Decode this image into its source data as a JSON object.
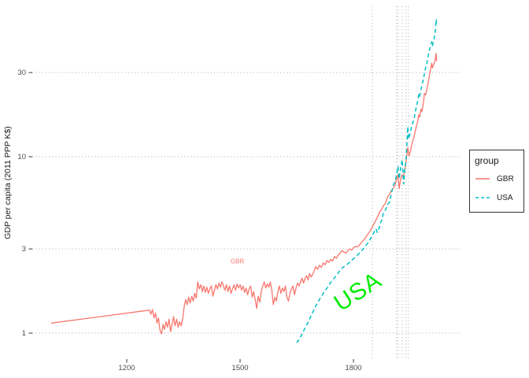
{
  "figure": {
    "background": "#FFFFFF"
  },
  "chart_data": {
    "type": "line",
    "title": "",
    "xlabel": "",
    "ylabel": "GDP per capita (2011 PPP K$)",
    "x_scale": "linear_years",
    "y_scale": "log10",
    "x_ticks": [
      1200,
      1500,
      1800
    ],
    "y_ticks": [
      1,
      3,
      10,
      30
    ],
    "x_range": [
      949,
      2071
    ],
    "y_range": [
      0.71,
      71.5
    ],
    "grid": {
      "horizontal_dotted_at_y_ticks": true,
      "vertical_gridlines_at_x_ticks": false
    },
    "vlines": [
      1850,
      1914,
      1918,
      1929,
      1939,
      1945
    ],
    "colors": {
      "gbr_line": "#F8766D",
      "usa_line": "#00BFC4",
      "usa_annotation": "#00EC00",
      "grid_dots": "#ABABAB",
      "axis_text": "#4D4D4D",
      "tick_mark": "#333333"
    },
    "legend": {
      "title": "group",
      "position": "right",
      "entries": [
        {
          "label": "GBR",
          "color": "#F8766D",
          "linetype": "solid"
        },
        {
          "label": "USA",
          "color": "#00BFC4",
          "linetype": "dashed"
        }
      ]
    },
    "annotations": [
      {
        "text": "GBR",
        "x": 1493,
        "y": 2.55,
        "color": "#F8766D",
        "rotate_deg": 0
      },
      {
        "text": "USA",
        "x": 1812,
        "y": 1.7,
        "color": "#00EC00",
        "rotate_deg": -33
      }
    ],
    "series": [
      {
        "name": "GBR",
        "color": "#F8766D",
        "linetype": "solid",
        "width": 1.3,
        "points": [
          [
            1000,
            1.14
          ],
          [
            1260,
            1.35
          ],
          [
            1264,
            1.28
          ],
          [
            1268,
            1.36
          ],
          [
            1272,
            1.22
          ],
          [
            1276,
            1.3
          ],
          [
            1280,
            1.14
          ],
          [
            1284,
            1.22
          ],
          [
            1288,
            1.04
          ],
          [
            1292,
            0.99
          ],
          [
            1296,
            1.12
          ],
          [
            1300,
            1.05
          ],
          [
            1304,
            1.16
          ],
          [
            1308,
            1.08
          ],
          [
            1312,
            1.2
          ],
          [
            1316,
            1.02
          ],
          [
            1320,
            1.12
          ],
          [
            1324,
            1.24
          ],
          [
            1328,
            1.1
          ],
          [
            1332,
            1.2
          ],
          [
            1336,
            1.08
          ],
          [
            1340,
            1.16
          ],
          [
            1344,
            1.1
          ],
          [
            1348,
            1.2
          ],
          [
            1352,
            1.42
          ],
          [
            1356,
            1.55
          ],
          [
            1360,
            1.45
          ],
          [
            1364,
            1.6
          ],
          [
            1368,
            1.48
          ],
          [
            1372,
            1.62
          ],
          [
            1376,
            1.52
          ],
          [
            1380,
            1.68
          ],
          [
            1384,
            1.58
          ],
          [
            1388,
            1.95
          ],
          [
            1392,
            1.78
          ],
          [
            1396,
            1.88
          ],
          [
            1400,
            1.72
          ],
          [
            1404,
            1.85
          ],
          [
            1408,
            1.7
          ],
          [
            1412,
            1.82
          ],
          [
            1416,
            1.68
          ],
          [
            1420,
            1.78
          ],
          [
            1424,
            1.85
          ],
          [
            1428,
            1.62
          ],
          [
            1432,
            1.75
          ],
          [
            1436,
            1.88
          ],
          [
            1440,
            1.78
          ],
          [
            1444,
            1.92
          ],
          [
            1448,
            1.82
          ],
          [
            1452,
            1.95
          ],
          [
            1456,
            1.85
          ],
          [
            1460,
            1.75
          ],
          [
            1464,
            1.88
          ],
          [
            1468,
            1.72
          ],
          [
            1472,
            1.85
          ],
          [
            1476,
            1.68
          ],
          [
            1480,
            1.78
          ],
          [
            1484,
            1.88
          ],
          [
            1488,
            1.75
          ],
          [
            1492,
            1.9
          ],
          [
            1496,
            1.8
          ],
          [
            1500,
            1.88
          ],
          [
            1504,
            1.75
          ],
          [
            1508,
            1.85
          ],
          [
            1512,
            1.7
          ],
          [
            1516,
            1.8
          ],
          [
            1520,
            1.65
          ],
          [
            1524,
            1.78
          ],
          [
            1528,
            1.85
          ],
          [
            1532,
            1.6
          ],
          [
            1536,
            1.72
          ],
          [
            1540,
            1.55
          ],
          [
            1544,
            1.38
          ],
          [
            1548,
            1.62
          ],
          [
            1552,
            1.5
          ],
          [
            1556,
            1.72
          ],
          [
            1560,
            1.85
          ],
          [
            1564,
            1.95
          ],
          [
            1568,
            1.8
          ],
          [
            1572,
            1.9
          ],
          [
            1576,
            1.82
          ],
          [
            1580,
            1.95
          ],
          [
            1584,
            1.75
          ],
          [
            1588,
            1.45
          ],
          [
            1592,
            1.6
          ],
          [
            1596,
            1.52
          ],
          [
            1600,
            1.72
          ],
          [
            1604,
            1.85
          ],
          [
            1608,
            1.68
          ],
          [
            1612,
            1.8
          ],
          [
            1616,
            1.72
          ],
          [
            1620,
            1.85
          ],
          [
            1624,
            1.6
          ],
          [
            1628,
            1.52
          ],
          [
            1632,
            1.68
          ],
          [
            1636,
            1.78
          ],
          [
            1640,
            1.85
          ],
          [
            1644,
            1.65
          ],
          [
            1648,
            1.8
          ],
          [
            1652,
            1.92
          ],
          [
            1656,
            1.85
          ],
          [
            1660,
            1.95
          ],
          [
            1664,
            2.05
          ],
          [
            1668,
            1.92
          ],
          [
            1672,
            2.05
          ],
          [
            1676,
            2.12
          ],
          [
            1680,
            2.0
          ],
          [
            1684,
            2.18
          ],
          [
            1688,
            2.08
          ],
          [
            1692,
            2.15
          ],
          [
            1696,
            2.25
          ],
          [
            1700,
            2.38
          ],
          [
            1705,
            2.3
          ],
          [
            1710,
            2.42
          ],
          [
            1715,
            2.36
          ],
          [
            1720,
            2.5
          ],
          [
            1725,
            2.44
          ],
          [
            1730,
            2.58
          ],
          [
            1735,
            2.52
          ],
          [
            1740,
            2.62
          ],
          [
            1745,
            2.56
          ],
          [
            1750,
            2.72
          ],
          [
            1755,
            2.66
          ],
          [
            1760,
            2.78
          ],
          [
            1765,
            2.84
          ],
          [
            1770,
            2.94
          ],
          [
            1775,
            2.88
          ],
          [
            1780,
            2.84
          ],
          [
            1785,
            2.94
          ],
          [
            1790,
            3.0
          ],
          [
            1795,
            2.96
          ],
          [
            1800,
            3.04
          ],
          [
            1805,
            3.1
          ],
          [
            1810,
            3.08
          ],
          [
            1815,
            3.14
          ],
          [
            1820,
            3.24
          ],
          [
            1825,
            3.34
          ],
          [
            1830,
            3.42
          ],
          [
            1835,
            3.56
          ],
          [
            1840,
            3.68
          ],
          [
            1845,
            3.82
          ],
          [
            1850,
            4.0
          ],
          [
            1855,
            4.2
          ],
          [
            1860,
            4.4
          ],
          [
            1865,
            4.62
          ],
          [
            1870,
            4.9
          ],
          [
            1875,
            5.05
          ],
          [
            1880,
            5.3
          ],
          [
            1885,
            5.45
          ],
          [
            1890,
            5.9
          ],
          [
            1895,
            6.1
          ],
          [
            1900,
            6.4
          ],
          [
            1905,
            6.6
          ],
          [
            1910,
            6.9
          ],
          [
            1913,
            7.3
          ],
          [
            1916,
            7.6
          ],
          [
            1918,
            7.9
          ],
          [
            1921,
            6.6
          ],
          [
            1925,
            7.5
          ],
          [
            1929,
            7.9
          ],
          [
            1932,
            7.6
          ],
          [
            1935,
            8.3
          ],
          [
            1938,
            8.9
          ],
          [
            1941,
            10.2
          ],
          [
            1944,
            11.3
          ],
          [
            1947,
            10.1
          ],
          [
            1951,
            10.8
          ],
          [
            1955,
            11.9
          ],
          [
            1960,
            12.9
          ],
          [
            1965,
            14.4
          ],
          [
            1970,
            15.9
          ],
          [
            1973,
            17.3
          ],
          [
            1975,
            16.8
          ],
          [
            1979,
            18.6
          ],
          [
            1981,
            18.0
          ],
          [
            1985,
            20.1
          ],
          [
            1988,
            22.8
          ],
          [
            1991,
            22.4
          ],
          [
            1995,
            24.6
          ],
          [
            2000,
            27.9
          ],
          [
            2004,
            31.2
          ],
          [
            2007,
            33.8
          ],
          [
            2009,
            31.9
          ],
          [
            2013,
            33.6
          ],
          [
            2016,
            35.2
          ],
          [
            2019,
            38.5
          ],
          [
            2020,
            34.8
          ]
        ]
      },
      {
        "name": "USA",
        "color": "#00BFC4",
        "linetype": "dashed",
        "width": 1.5,
        "points": [
          [
            1650,
            0.88
          ],
          [
            1660,
            0.95
          ],
          [
            1670,
            1.05
          ],
          [
            1680,
            1.15
          ],
          [
            1690,
            1.28
          ],
          [
            1700,
            1.42
          ],
          [
            1710,
            1.55
          ],
          [
            1720,
            1.68
          ],
          [
            1730,
            1.8
          ],
          [
            1740,
            1.94
          ],
          [
            1750,
            2.06
          ],
          [
            1760,
            2.2
          ],
          [
            1770,
            2.34
          ],
          [
            1780,
            2.42
          ],
          [
            1790,
            2.52
          ],
          [
            1800,
            2.64
          ],
          [
            1810,
            2.76
          ],
          [
            1820,
            2.9
          ],
          [
            1830,
            3.08
          ],
          [
            1840,
            3.28
          ],
          [
            1850,
            3.58
          ],
          [
            1855,
            3.75
          ],
          [
            1860,
            3.9
          ],
          [
            1863,
            3.72
          ],
          [
            1866,
            3.82
          ],
          [
            1870,
            4.1
          ],
          [
            1875,
            4.4
          ],
          [
            1880,
            4.85
          ],
          [
            1885,
            5.0
          ],
          [
            1890,
            5.35
          ],
          [
            1895,
            5.5
          ],
          [
            1900,
            6.1
          ],
          [
            1905,
            6.9
          ],
          [
            1910,
            7.2
          ],
          [
            1913,
            7.7
          ],
          [
            1916,
            8.4
          ],
          [
            1918,
            8.8
          ],
          [
            1921,
            7.5
          ],
          [
            1925,
            8.6
          ],
          [
            1929,
            9.6
          ],
          [
            1931,
            8.2
          ],
          [
            1933,
            7.0
          ],
          [
            1936,
            8.6
          ],
          [
            1939,
            9.4
          ],
          [
            1941,
            11.5
          ],
          [
            1944,
            14.8
          ],
          [
            1946,
            12.6
          ],
          [
            1950,
            13.6
          ],
          [
            1955,
            15.2
          ],
          [
            1960,
            16.2
          ],
          [
            1965,
            18.6
          ],
          [
            1970,
            20.7
          ],
          [
            1973,
            22.5
          ],
          [
            1975,
            21.8
          ],
          [
            1980,
            24.8
          ],
          [
            1985,
            27.5
          ],
          [
            1990,
            31.3
          ],
          [
            1995,
            34.5
          ],
          [
            2000,
            39.7
          ],
          [
            2004,
            42.3
          ],
          [
            2007,
            44.8
          ],
          [
            2009,
            42.5
          ],
          [
            2013,
            46
          ],
          [
            2016,
            50
          ],
          [
            2019,
            60
          ],
          [
            2020,
            57
          ]
        ]
      }
    ]
  }
}
